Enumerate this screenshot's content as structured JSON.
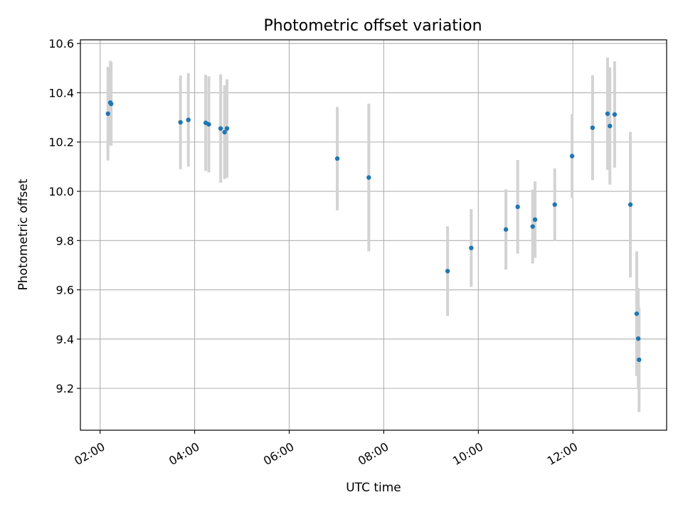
{
  "chart_data": {
    "type": "scatter",
    "title": "Photometric offset variation",
    "xlabel": "UTC time",
    "ylabel": "Photometric offset",
    "x_unit": "hours UTC",
    "xlim": [
      "01:35",
      "13:59"
    ],
    "ylim": [
      9.03,
      10.615
    ],
    "grid": true,
    "x_ticks": [
      {
        "value": "02:00",
        "label": "02:00"
      },
      {
        "value": "04:00",
        "label": "04:00"
      },
      {
        "value": "06:00",
        "label": "06:00"
      },
      {
        "value": "08:00",
        "label": "08:00"
      },
      {
        "value": "10:00",
        "label": "10:00"
      },
      {
        "value": "12:00",
        "label": "12:00"
      }
    ],
    "y_ticks": [
      9.2,
      9.4,
      9.6,
      9.8,
      10.0,
      10.2,
      10.4,
      10.6
    ],
    "y_tick_labels": [
      "9.2",
      "9.4",
      "9.6",
      "9.8",
      "10.0",
      "10.2",
      "10.4",
      "10.6"
    ],
    "colors": {
      "marker": "#1f77b4",
      "errorbar": "#d3d3d3"
    },
    "series": [
      {
        "points": [
          {
            "x": "02:10",
            "y": 10.315,
            "err": 0.19
          },
          {
            "x": "02:13",
            "y": 10.36,
            "err": 0.17
          },
          {
            "x": "02:14",
            "y": 10.355,
            "err": 0.17
          },
          {
            "x": "03:42",
            "y": 10.28,
            "err": 0.19
          },
          {
            "x": "03:52",
            "y": 10.29,
            "err": 0.19
          },
          {
            "x": "04:14",
            "y": 10.278,
            "err": 0.195
          },
          {
            "x": "04:18",
            "y": 10.272,
            "err": 0.195
          },
          {
            "x": "04:33",
            "y": 10.255,
            "err": 0.22
          },
          {
            "x": "04:38",
            "y": 10.24,
            "err": 0.19
          },
          {
            "x": "04:41",
            "y": 10.255,
            "err": 0.2
          },
          {
            "x": "07:01",
            "y": 10.133,
            "err": 0.21
          },
          {
            "x": "07:41",
            "y": 10.056,
            "err": 0.3
          },
          {
            "x": "09:21",
            "y": 9.676,
            "err": 0.182
          },
          {
            "x": "09:51",
            "y": 9.77,
            "err": 0.158
          },
          {
            "x": "10:35",
            "y": 9.845,
            "err": 0.163
          },
          {
            "x": "10:50",
            "y": 9.937,
            "err": 0.19
          },
          {
            "x": "11:09",
            "y": 9.857,
            "err": 0.15
          },
          {
            "x": "11:12",
            "y": 9.885,
            "err": 0.155
          },
          {
            "x": "11:37",
            "y": 9.946,
            "err": 0.147
          },
          {
            "x": "11:59",
            "y": 10.143,
            "err": 0.17
          },
          {
            "x": "12:25",
            "y": 10.258,
            "err": 0.213
          },
          {
            "x": "12:44",
            "y": 10.315,
            "err": 0.228
          },
          {
            "x": "12:47",
            "y": 10.265,
            "err": 0.238
          },
          {
            "x": "12:53",
            "y": 10.312,
            "err": 0.216
          },
          {
            "x": "13:13",
            "y": 9.946,
            "err": 0.295
          },
          {
            "x": "13:21",
            "y": 9.503,
            "err": 0.253
          },
          {
            "x": "13:23",
            "y": 9.402,
            "err": 0.205
          },
          {
            "x": "13:24",
            "y": 9.316,
            "err": 0.212
          }
        ]
      }
    ]
  }
}
